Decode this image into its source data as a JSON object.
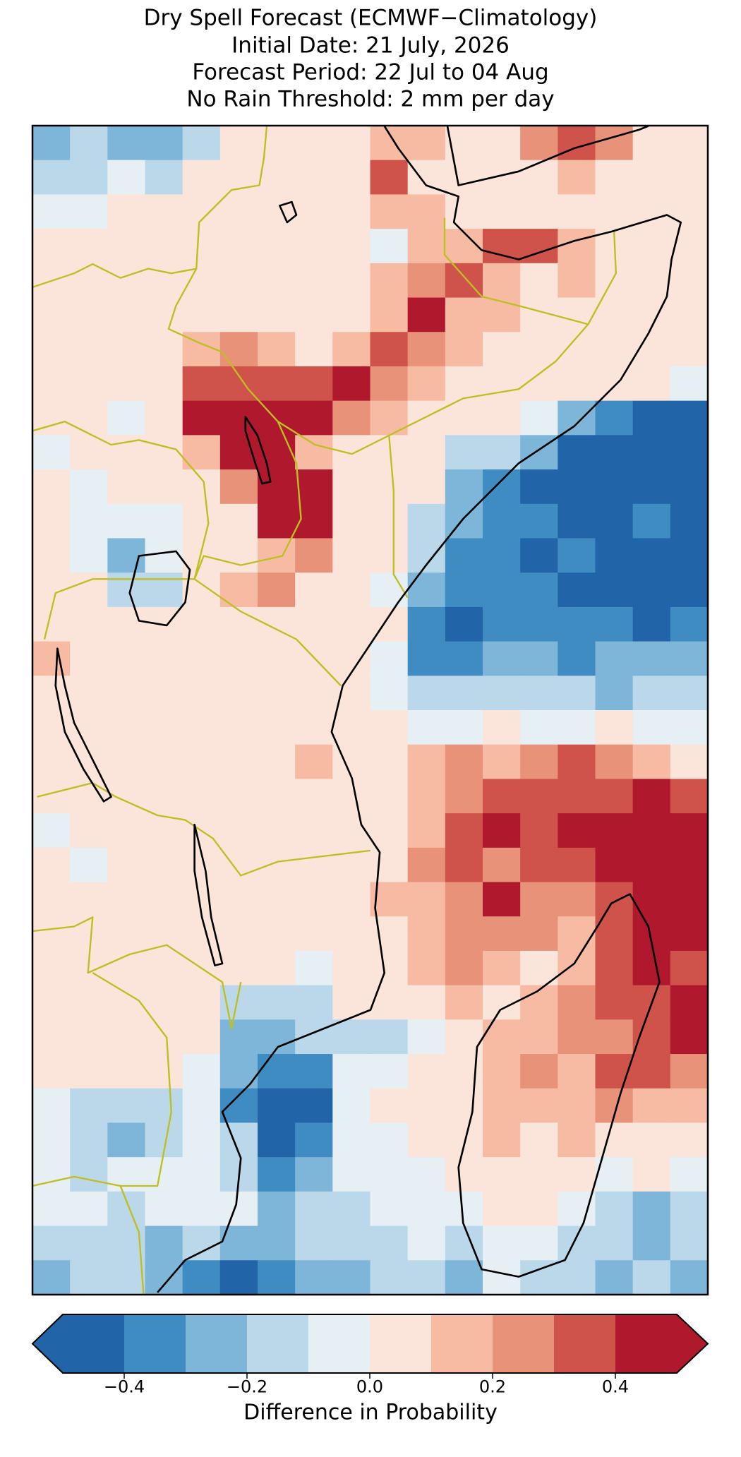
{
  "chart_data": {
    "type": "heatmap",
    "title": [
      "Dry Spell Forecast (ECMWF−Climatology)",
      "Initial Date: 21 July, 2026",
      "Forecast Period: 22 Jul to 04 Aug",
      "No Rain Threshold: 2 mm per day"
    ],
    "colorbar_label": "Difference in Probability",
    "levels": [
      -0.5,
      -0.4,
      -0.3,
      -0.2,
      -0.1,
      0,
      0.1,
      0.2,
      0.3,
      0.4,
      0.5
    ],
    "colors": [
      "#2165a8",
      "#3f8cc2",
      "#7db6d8",
      "#bad8e9",
      "#e6eff4",
      "#fbe4da",
      "#f6bba2",
      "#e8927a",
      "#cf534a",
      "#b0182e"
    ],
    "cticks": [
      {
        "value": -0.4,
        "label": "−0.4"
      },
      {
        "value": -0.2,
        "label": "−0.2"
      },
      {
        "value": 0,
        "label": "0.0"
      },
      0.2,
      0.4
    ],
    "values": [
      [
        -0.25,
        -0.2,
        -0.25,
        -0.3,
        -0.2,
        0.05,
        0.05,
        0.05,
        0.05,
        0.1,
        0.1,
        0.05,
        0.05,
        0.2,
        0.3,
        0.25,
        0.05,
        0.05
      ],
      [
        -0.15,
        -0.15,
        -0.1,
        -0.15,
        0.05,
        0.05,
        0.05,
        0.05,
        0.05,
        0.3,
        0.05,
        0.05,
        0.05,
        0.05,
        0.15,
        0.05,
        0.05,
        0.05
      ],
      [
        -0.1,
        -0.05,
        0.05,
        0.05,
        0.05,
        0.05,
        0.05,
        0.05,
        0.05,
        0.1,
        0.15,
        0.05,
        0.05,
        0.05,
        0.05,
        0.05,
        0.05,
        0.05
      ],
      [
        0.05,
        0.05,
        0.05,
        0.05,
        0.05,
        0.05,
        0.05,
        0.05,
        0.05,
        -0.1,
        0.15,
        0.1,
        0.3,
        0.35,
        0.15,
        0.05,
        0.05,
        0.05
      ],
      [
        0.05,
        0.05,
        0.05,
        0.05,
        0.05,
        0.05,
        0.05,
        0.05,
        0.05,
        0.15,
        0.25,
        0.3,
        0.1,
        0.05,
        0.15,
        0.05,
        0.05,
        0.05
      ],
      [
        0.05,
        0.05,
        0.05,
        0.05,
        0.05,
        0.05,
        0.05,
        0.05,
        0.05,
        0.15,
        0.4,
        0.15,
        0.1,
        0.05,
        0.05,
        0.05,
        0.05,
        0.05
      ],
      [
        0.05,
        0.05,
        0.05,
        0.05,
        0.15,
        0.2,
        0.15,
        0.05,
        0.1,
        0.35,
        0.2,
        0.15,
        0.05,
        0.05,
        0.05,
        0.05,
        0.05,
        0.05
      ],
      [
        0.05,
        0.05,
        0.05,
        0.05,
        0.3,
        0.3,
        0.3,
        0.35,
        0.4,
        0.2,
        0.15,
        0.05,
        0.05,
        0.05,
        0.05,
        0.05,
        0.05,
        -0.05
      ],
      [
        0.0,
        0.0,
        -0.05,
        0.05,
        0.45,
        0.45,
        0.45,
        0.4,
        0.2,
        0.15,
        0.05,
        0.05,
        0.0,
        -0.05,
        -0.3,
        -0.35,
        -0.45,
        -0.45
      ],
      [
        -0.05,
        0.0,
        0.05,
        0.05,
        0.15,
        0.45,
        0.45,
        0.15,
        0.05,
        0.05,
        0.05,
        -0.15,
        -0.2,
        -0.3,
        -0.45,
        -0.45,
        -0.45,
        -0.45
      ],
      [
        0.0,
        -0.05,
        0.0,
        0.05,
        0.05,
        0.25,
        0.45,
        0.45,
        0.05,
        0.05,
        0.0,
        -0.25,
        -0.35,
        -0.45,
        -0.45,
        -0.45,
        -0.45,
        -0.45
      ],
      [
        0.05,
        -0.05,
        -0.1,
        -0.05,
        0.0,
        0.05,
        0.4,
        0.45,
        0.05,
        0.0,
        -0.15,
        -0.3,
        -0.4,
        -0.4,
        -0.45,
        -0.45,
        -0.4,
        -0.45
      ],
      [
        0.05,
        -0.05,
        -0.25,
        -0.1,
        0.0,
        0.05,
        0.15,
        0.2,
        0.05,
        0.0,
        -0.2,
        -0.35,
        -0.35,
        -0.45,
        -0.4,
        -0.45,
        -0.45,
        -0.45
      ],
      [
        0.05,
        0.05,
        -0.15,
        -0.2,
        0.0,
        0.15,
        0.25,
        0.05,
        0.05,
        -0.05,
        -0.3,
        -0.4,
        -0.35,
        -0.4,
        -0.45,
        -0.45,
        -0.45,
        -0.45
      ],
      [
        0.05,
        0.05,
        0.0,
        0.05,
        0.0,
        0.05,
        0.05,
        0.05,
        0.05,
        0.0,
        -0.4,
        -0.45,
        -0.4,
        -0.35,
        -0.4,
        -0.35,
        -0.45,
        -0.4
      ],
      [
        0.15,
        0.05,
        0.0,
        0.05,
        0.05,
        0.05,
        0.05,
        0.05,
        0.0,
        -0.1,
        -0.35,
        -0.35,
        -0.3,
        -0.3,
        -0.35,
        -0.25,
        -0.3,
        -0.25
      ],
      [
        0.05,
        0.05,
        0.0,
        0.05,
        0.05,
        0.05,
        0.05,
        0.05,
        0.05,
        -0.05,
        -0.2,
        -0.15,
        -0.2,
        -0.15,
        -0.2,
        -0.25,
        -0.15,
        -0.2
      ],
      [
        0.05,
        0.05,
        0.05,
        0.05,
        0.05,
        0.05,
        0.05,
        0.05,
        0.05,
        0.0,
        -0.05,
        -0.05,
        0.0,
        -0.05,
        -0.05,
        0.0,
        -0.1,
        -0.05
      ],
      [
        0.05,
        0.05,
        0.05,
        0.05,
        0.05,
        0.05,
        0.05,
        0.15,
        0.05,
        0.05,
        0.15,
        0.2,
        0.15,
        0.25,
        0.3,
        0.25,
        0.1,
        0.05
      ],
      [
        0.0,
        0.05,
        0.05,
        0.05,
        0.05,
        0.05,
        0.05,
        0.05,
        0.05,
        0.0,
        0.15,
        0.25,
        0.3,
        0.35,
        0.35,
        0.3,
        0.4,
        0.3
      ],
      [
        -0.05,
        0.0,
        0.05,
        0.05,
        0.05,
        0.05,
        0.05,
        0.05,
        0.05,
        0.05,
        0.15,
        0.3,
        0.4,
        0.3,
        0.45,
        0.45,
        0.45,
        0.45
      ],
      [
        0.0,
        -0.05,
        0.05,
        0.05,
        0.05,
        0.05,
        0.0,
        0.05,
        0.0,
        0.05,
        0.2,
        0.35,
        0.25,
        0.3,
        0.35,
        0.45,
        0.45,
        0.45
      ],
      [
        0.0,
        0.05,
        0.05,
        0.0,
        0.05,
        0.05,
        0.0,
        0.05,
        0.05,
        0.1,
        0.15,
        0.25,
        0.4,
        0.2,
        0.25,
        0.3,
        0.45,
        0.45
      ],
      [
        0.05,
        0.0,
        0.05,
        0.05,
        0.0,
        0.05,
        0.05,
        0.0,
        0.05,
        0.05,
        0.1,
        0.25,
        0.2,
        0.2,
        0.15,
        0.3,
        0.45,
        0.4
      ],
      [
        0.05,
        0.05,
        0.05,
        0.05,
        0.0,
        0.05,
        0.0,
        -0.05,
        0.05,
        0.0,
        0.1,
        0.2,
        0.15,
        0.05,
        0.15,
        0.35,
        0.45,
        0.3
      ],
      [
        0.05,
        0.05,
        0.05,
        0.05,
        0.0,
        -0.15,
        -0.2,
        -0.15,
        0.0,
        0.0,
        0.05,
        0.15,
        0.05,
        0.15,
        0.2,
        0.3,
        0.35,
        0.4
      ],
      [
        0.05,
        0.05,
        0.05,
        0.0,
        0.0,
        -0.3,
        -0.25,
        -0.2,
        -0.15,
        -0.15,
        -0.05,
        0.05,
        0.15,
        0.15,
        0.2,
        0.25,
        0.35,
        0.4
      ],
      [
        0.05,
        0.0,
        0.0,
        0.0,
        -0.05,
        -0.3,
        -0.4,
        -0.35,
        -0.1,
        -0.05,
        0.0,
        0.05,
        0.1,
        0.2,
        0.15,
        0.3,
        0.3,
        0.25
      ],
      [
        -0.05,
        -0.15,
        -0.2,
        -0.15,
        -0.1,
        -0.35,
        -0.45,
        -0.45,
        -0.05,
        0.0,
        0.0,
        0.05,
        0.15,
        0.1,
        0.15,
        0.2,
        0.15,
        0.1
      ],
      [
        -0.1,
        -0.2,
        -0.25,
        -0.2,
        -0.1,
        -0.2,
        -0.45,
        -0.4,
        -0.1,
        -0.05,
        0.0,
        0.0,
        0.1,
        0.05,
        0.1,
        0.05,
        0.05,
        0.0
      ],
      [
        -0.05,
        -0.15,
        -0.1,
        -0.05,
        -0.1,
        -0.15,
        -0.4,
        -0.3,
        -0.1,
        -0.1,
        -0.05,
        0.0,
        0.05,
        0.05,
        0.0,
        -0.05,
        0.0,
        -0.1
      ],
      [
        -0.1,
        -0.1,
        -0.15,
        -0.1,
        -0.05,
        -0.1,
        -0.25,
        -0.2,
        -0.15,
        -0.1,
        -0.1,
        -0.05,
        0.0,
        0.0,
        -0.05,
        -0.15,
        -0.25,
        -0.2
      ],
      [
        -0.15,
        -0.2,
        -0.15,
        -0.25,
        -0.2,
        -0.3,
        -0.25,
        -0.2,
        -0.2,
        -0.15,
        -0.1,
        -0.15,
        -0.05,
        -0.1,
        -0.15,
        -0.2,
        -0.3,
        -0.2
      ],
      [
        -0.25,
        -0.2,
        -0.15,
        -0.3,
        -0.4,
        -0.45,
        -0.35,
        -0.25,
        -0.3,
        -0.2,
        -0.15,
        -0.3,
        -0.1,
        -0.15,
        -0.2,
        -0.25,
        -0.2,
        -0.3
      ]
    ]
  }
}
